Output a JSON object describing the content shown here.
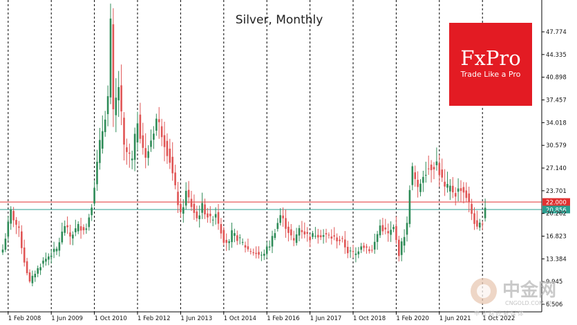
{
  "chart_data": {
    "type": "candlestick",
    "title": "Silver, Monthly",
    "instrument": "Silver",
    "timeframe": "Monthly",
    "ylim": [
      6.3,
      50.5
    ],
    "y_ticks": [
      "47.774",
      "44.335",
      "40.898",
      "37.457",
      "34.018",
      "30.579",
      "27.140",
      "23.701",
      "20.262",
      "16.823",
      "13.384",
      "9.945",
      "6.506"
    ],
    "x_ticks": [
      "1 Feb 2008",
      "1 Jun 2009",
      "1 Oct 2010",
      "1 Feb 2012",
      "1 Jun 2013",
      "1 Oct 2014",
      "1 Feb 2016",
      "1 Jun 2017",
      "1 Oct 2018",
      "1 Feb 2020",
      "1 Jun 2021",
      "1 Oct 2022"
    ],
    "x_start": "2007-12",
    "x_end": "2023-02",
    "levels": [
      {
        "value": 22.0,
        "label": "22.000",
        "color": "#e03030"
      },
      {
        "value": 20.856,
        "label": "20.856",
        "color": "#2a9d8f"
      }
    ],
    "colors": {
      "up": "#2e8b57",
      "down": "#e05555"
    },
    "anchors": [
      [
        "2007-12",
        14.8
      ],
      [
        "2008-03",
        20.5
      ],
      [
        "2008-06",
        17.6
      ],
      [
        "2008-08",
        13.0
      ],
      [
        "2008-10",
        9.8
      ],
      [
        "2008-12",
        11.3
      ],
      [
        "2009-03",
        13.0
      ],
      [
        "2009-06",
        14.2
      ],
      [
        "2009-08",
        14.8
      ],
      [
        "2009-11",
        18.5
      ],
      [
        "2010-01",
        16.8
      ],
      [
        "2010-04",
        18.3
      ],
      [
        "2010-07",
        18.0
      ],
      [
        "2010-09",
        21.8
      ],
      [
        "2010-12",
        30.6
      ],
      [
        "2011-03",
        37.8
      ],
      [
        "2011-04",
        48.6
      ],
      [
        "2011-05",
        35.2
      ],
      [
        "2011-07",
        39.6
      ],
      [
        "2011-09",
        30.1
      ],
      [
        "2011-12",
        28.2
      ],
      [
        "2012-02",
        34.6
      ],
      [
        "2012-05",
        28.3
      ],
      [
        "2012-09",
        34.6
      ],
      [
        "2012-11",
        32.6
      ],
      [
        "2013-02",
        28.4
      ],
      [
        "2013-04",
        23.9
      ],
      [
        "2013-06",
        19.9
      ],
      [
        "2013-08",
        23.4
      ],
      [
        "2013-12",
        19.5
      ],
      [
        "2014-02",
        21.3
      ],
      [
        "2014-05",
        19.3
      ],
      [
        "2014-07",
        20.4
      ],
      [
        "2014-10",
        16.3
      ],
      [
        "2014-12",
        15.7
      ],
      [
        "2015-01",
        17.2
      ],
      [
        "2015-04",
        16.2
      ],
      [
        "2015-07",
        14.8
      ],
      [
        "2015-12",
        13.8
      ],
      [
        "2016-03",
        15.5
      ],
      [
        "2016-07",
        20.0
      ],
      [
        "2016-10",
        17.6
      ],
      [
        "2016-12",
        15.9
      ],
      [
        "2017-02",
        18.1
      ],
      [
        "2017-06",
        16.6
      ],
      [
        "2017-08",
        17.2
      ],
      [
        "2017-12",
        16.9
      ],
      [
        "2018-03",
        16.5
      ],
      [
        "2018-06",
        16.1
      ],
      [
        "2018-08",
        14.5
      ],
      [
        "2018-11",
        14.1
      ],
      [
        "2019-01",
        15.6
      ],
      [
        "2019-05",
        14.6
      ],
      [
        "2019-08",
        18.4
      ],
      [
        "2019-11",
        17.1
      ],
      [
        "2020-01",
        18.0
      ],
      [
        "2020-03",
        14.2
      ],
      [
        "2020-06",
        18.5
      ],
      [
        "2020-07",
        24.4
      ],
      [
        "2020-08",
        26.9
      ],
      [
        "2020-10",
        23.7
      ],
      [
        "2020-12",
        26.3
      ],
      [
        "2021-01",
        26.9
      ],
      [
        "2021-05",
        27.9
      ],
      [
        "2021-08",
        24.0
      ],
      [
        "2021-10",
        24.1
      ],
      [
        "2021-12",
        23.3
      ],
      [
        "2022-02",
        24.2
      ],
      [
        "2022-04",
        22.9
      ],
      [
        "2022-06",
        20.3
      ],
      [
        "2022-08",
        17.8
      ],
      [
        "2022-10",
        19.2
      ],
      [
        "2022-11",
        21.4
      ]
    ]
  },
  "brand": {
    "name": "FxPro",
    "tagline": "Trade Like a Pro",
    "color": "#e31b23"
  },
  "watermark": {
    "name": "中金网",
    "domain": "CNGOLD.COM.CN",
    "tagline": "中 金 财 经 新 媒 体"
  }
}
